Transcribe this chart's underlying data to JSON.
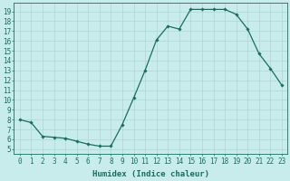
{
  "x": [
    0,
    1,
    2,
    3,
    4,
    5,
    6,
    7,
    8,
    9,
    10,
    11,
    12,
    13,
    14,
    15,
    16,
    17,
    18,
    19,
    20,
    21,
    22,
    23
  ],
  "y": [
    8.0,
    7.7,
    6.3,
    6.2,
    6.1,
    5.8,
    5.5,
    5.3,
    5.3,
    7.5,
    10.2,
    13.0,
    16.1,
    17.5,
    17.2,
    19.2,
    19.2,
    19.2,
    19.2,
    18.7,
    17.2,
    14.7,
    13.2,
    11.5
  ],
  "line_color": "#1a6e5e",
  "marker": "D",
  "marker_size": 1.8,
  "linewidth": 0.9,
  "bg_color": "#c8ecec",
  "grid_color": "#aed4d4",
  "xlabel": "Humidex (Indice chaleur)",
  "xlim": [
    -0.5,
    23.5
  ],
  "ylim": [
    4.5,
    19.9
  ],
  "yticks": [
    5,
    6,
    7,
    8,
    9,
    10,
    11,
    12,
    13,
    14,
    15,
    16,
    17,
    18,
    19
  ],
  "xticks": [
    0,
    1,
    2,
    3,
    4,
    5,
    6,
    7,
    8,
    9,
    10,
    11,
    12,
    13,
    14,
    15,
    16,
    17,
    18,
    19,
    20,
    21,
    22,
    23
  ],
  "tick_color": "#1a6e5e",
  "label_color": "#1a6e5e",
  "font_size": 5.5,
  "xlabel_fontsize": 6.5
}
